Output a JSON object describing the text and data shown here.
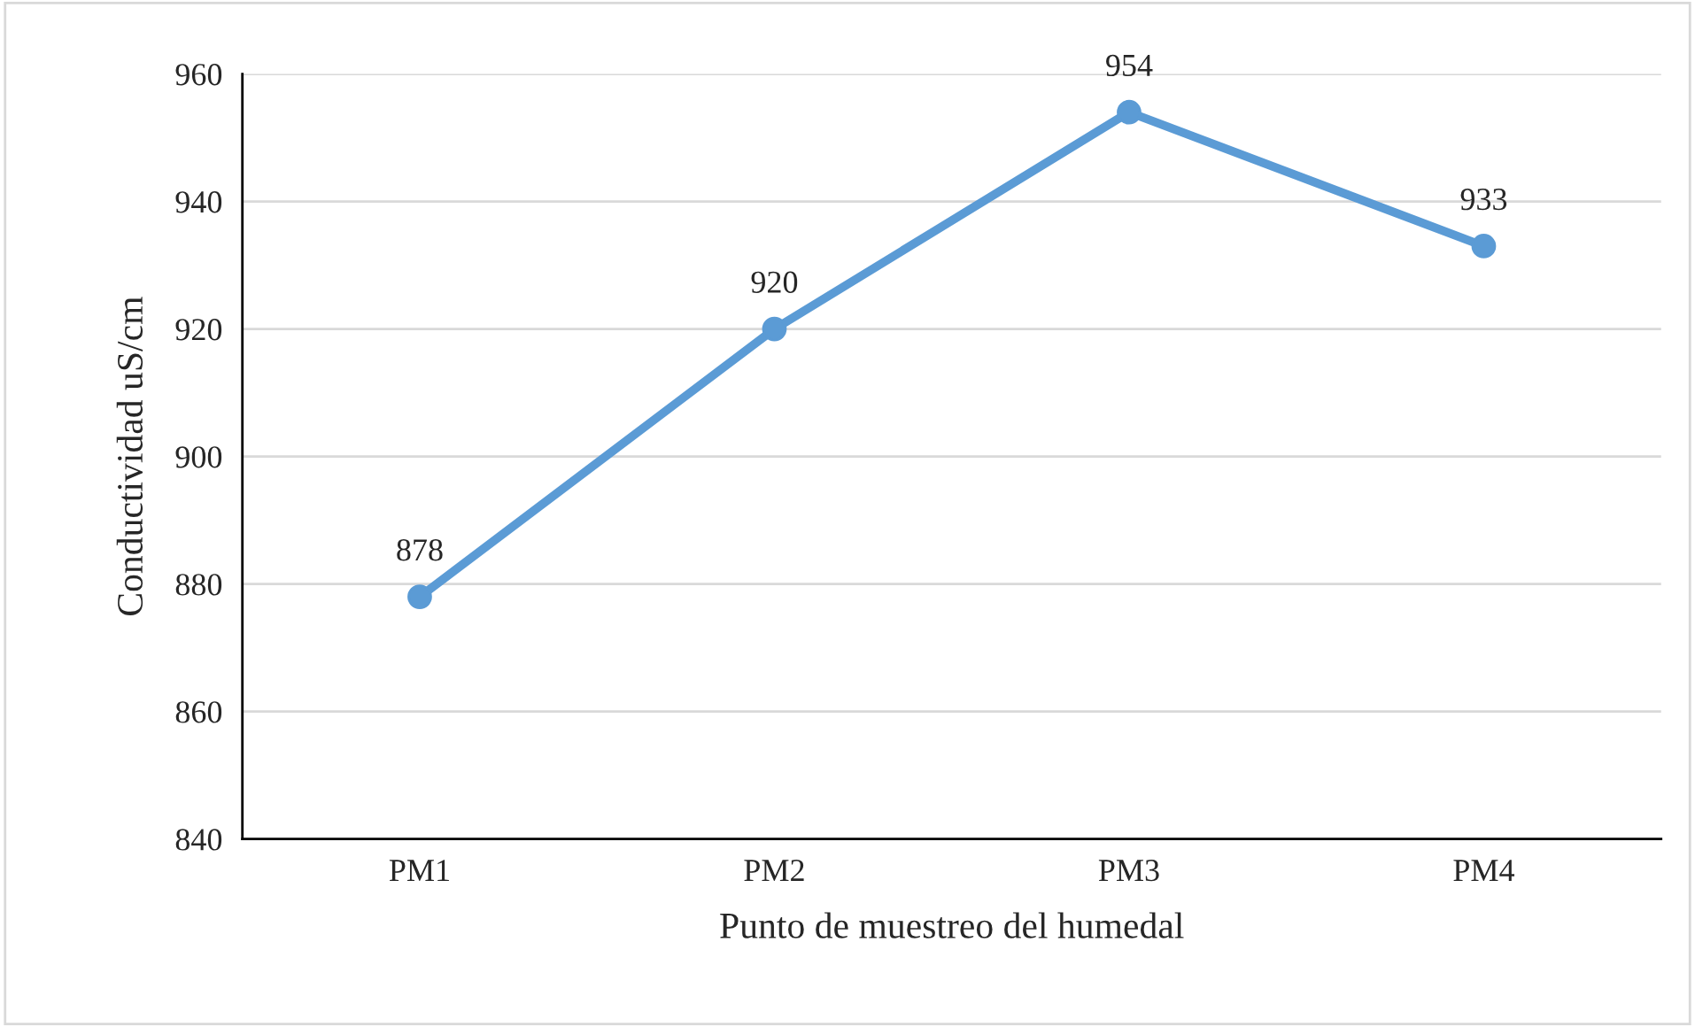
{
  "chart_data": {
    "type": "line",
    "xlabel": "Punto de muestreo del humedal",
    "ylabel": "Conductividad uS/cm",
    "categories": [
      "PM1",
      "PM2",
      "PM3",
      "PM4"
    ],
    "series": [
      {
        "color": "#5b9bd5",
        "values": [
          878,
          920,
          954,
          933
        ]
      }
    ],
    "ylim": [
      840,
      960
    ],
    "yticks": [
      840,
      860,
      880,
      900,
      920,
      940,
      960
    ],
    "grid": "y",
    "data_labels": true,
    "marker": "circle",
    "line_style": "solid"
  }
}
